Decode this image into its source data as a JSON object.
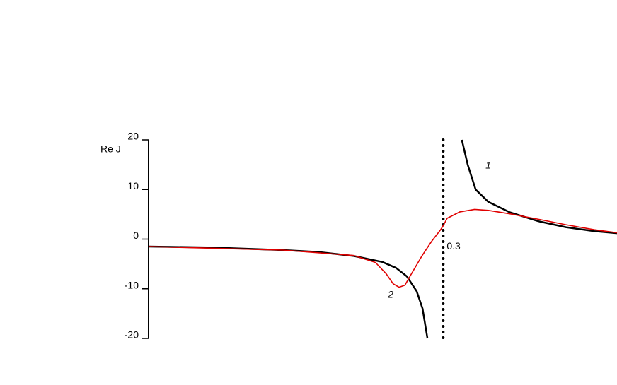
{
  "chart_data": {
    "type": "line",
    "y_label": "Re J",
    "xlim": [
      0,
      0.477
    ],
    "ylim": [
      -20,
      20
    ],
    "xticks": [
      0.3
    ],
    "yticks": [
      20,
      10,
      0,
      -10,
      -20
    ],
    "series": [
      {
        "name": "1",
        "color": "#000000",
        "x": [
          0,
          0.065,
          0.137,
          0.173,
          0.209,
          0.238,
          0.252,
          0.263,
          0.273,
          0.279,
          0.284,
          0.3,
          0.319,
          0.325,
          0.333,
          0.346,
          0.368,
          0.397,
          0.425,
          0.454,
          0.477
        ],
        "values": [
          -1.5,
          -1.7,
          -2.2,
          -2.6,
          -3.4,
          -4.6,
          -5.8,
          -7.5,
          -10.5,
          -14,
          -20,
          null,
          20,
          15,
          10,
          7.5,
          5.4,
          3.6,
          2.4,
          1.6,
          1.2
        ]
      },
      {
        "name": "2",
        "color": "#e00000",
        "x": [
          0,
          0.137,
          0.209,
          0.231,
          0.242,
          0.249,
          0.255,
          0.261,
          0.267,
          0.278,
          0.288,
          0.297,
          0.3,
          0.304,
          0.317,
          0.332,
          0.346,
          0.368,
          0.397,
          0.425,
          0.454,
          0.477
        ],
        "values": [
          -1.5,
          -2.2,
          -3.3,
          -4.7,
          -7,
          -9,
          -9.7,
          -9.3,
          -7.2,
          -3.5,
          -0.5,
          1.8,
          2.7,
          4.2,
          5.5,
          6,
          5.8,
          5.1,
          4,
          2.9,
          1.9,
          1.3
        ]
      }
    ]
  }
}
